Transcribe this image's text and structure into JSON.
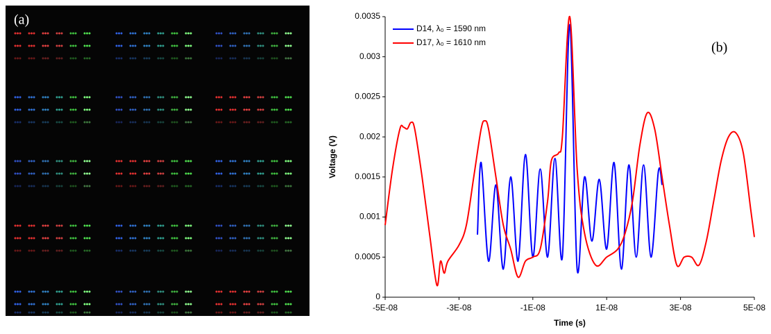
{
  "panel_label": "(a)",
  "chart_data": {
    "type": "line",
    "panel_label": "(b)",
    "x_label": "Time (s)",
    "y_label": "Voltage (V)",
    "xlim": [
      -5e-08,
      5e-08
    ],
    "xticks": [
      {
        "value": -5e-08,
        "label": "-5E-08"
      },
      {
        "value": -3e-08,
        "label": "-3E-08"
      },
      {
        "value": -1e-08,
        "label": "-1E-08"
      },
      {
        "value": 1e-08,
        "label": "1E-08"
      },
      {
        "value": 3e-08,
        "label": "3E-08"
      },
      {
        "value": 5e-08,
        "label": "5E-08"
      }
    ],
    "ylim": [
      0,
      0.0035
    ],
    "yticks": [
      0,
      0.0005,
      0.001,
      0.0015,
      0.002,
      0.0025,
      0.003,
      0.0035
    ],
    "legend": "upper-left",
    "series": [
      {
        "name": "D14, λ₀ = 1590 nm",
        "color": "#0000ff",
        "x": [
          -2.5e-08,
          -2.4e-08,
          -2.2e-08,
          -2e-08,
          -1.8e-08,
          -1.6e-08,
          -1.4e-08,
          -1.2e-08,
          -1e-08,
          -8e-09,
          -6e-09,
          -4e-09,
          -2e-09,
          0,
          2e-09,
          4e-09,
          6e-09,
          8e-09,
          1e-08,
          1.2e-08,
          1.4e-08,
          1.6e-08,
          1.8e-08,
          2e-08,
          2.2e-08,
          2.4e-08,
          2.5e-08
        ],
        "values": [
          0.00078,
          0.00168,
          0.00045,
          0.0014,
          0.00035,
          0.0015,
          0.00045,
          0.00178,
          0.0005,
          0.0016,
          0.0005,
          0.00173,
          0.0005,
          0.0034,
          0.00035,
          0.0015,
          0.0007,
          0.00147,
          0.0006,
          0.00168,
          0.00035,
          0.00165,
          0.0005,
          0.00165,
          0.0005,
          0.00157,
          0.0014
        ]
      },
      {
        "name": "D17, λ₀ = 1610 nm",
        "color": "#ff0000",
        "x": [
          -5e-08,
          -4.8e-08,
          -4.6e-08,
          -4.5e-08,
          -4.4e-08,
          -4.3e-08,
          -4.2e-08,
          -4e-08,
          -3.8e-08,
          -3.6e-08,
          -3.5e-08,
          -3.4e-08,
          -3.3e-08,
          -3e-08,
          -2.8e-08,
          -2.6e-08,
          -2.4e-08,
          -2.3e-08,
          -2.2e-08,
          -2e-08,
          -1.8e-08,
          -1.6e-08,
          -1.4e-08,
          -1.2e-08,
          -1e-08,
          -8e-09,
          -6e-09,
          -5e-09,
          -3e-09,
          -2e-09,
          0,
          2e-09,
          4e-09,
          7e-09,
          1e-08,
          1.3e-08,
          1.5e-08,
          1.7e-08,
          1.9e-08,
          2.1e-08,
          2.3e-08,
          2.5e-08,
          2.7e-08,
          2.9e-08,
          3.1e-08,
          3.3e-08,
          3.5e-08,
          3.7e-08,
          3.9e-08,
          4.1e-08,
          4.3e-08,
          4.5e-08,
          4.7e-08,
          4.9e-08,
          5e-08
        ],
        "values": [
          0.0009,
          0.0016,
          0.0021,
          0.00212,
          0.0021,
          0.00218,
          0.0021,
          0.0015,
          0.0008,
          0.00015,
          0.00045,
          0.0003,
          0.00045,
          0.00065,
          0.0009,
          0.0015,
          0.0021,
          0.0022,
          0.0021,
          0.0015,
          0.0009,
          0.0006,
          0.00025,
          0.00045,
          0.0005,
          0.0006,
          0.0012,
          0.0017,
          0.0018,
          0.002,
          0.0035,
          0.0016,
          0.0008,
          0.0004,
          0.0005,
          0.0006,
          0.0008,
          0.0012,
          0.0019,
          0.0023,
          0.0021,
          0.0015,
          0.0009,
          0.0004,
          0.0005,
          0.0005,
          0.0004,
          0.0007,
          0.0012,
          0.0017,
          0.002,
          0.00205,
          0.0018,
          0.0011,
          0.00075
        ]
      }
    ]
  }
}
